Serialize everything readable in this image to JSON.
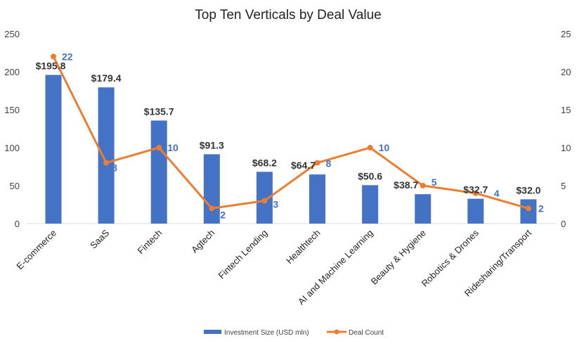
{
  "chart_data": {
    "type": "bar+line",
    "title": "Top Ten Verticals by Deal Value",
    "categories": [
      "E-commerce",
      "SaaS",
      "Fintech",
      "Agtech",
      "Fintech Lending",
      "Healthtech",
      "AI and Machine Learning",
      "Beauty & Hygiene",
      "Robotics & Drones",
      "Ridesharing/Transport"
    ],
    "series": [
      {
        "name": "Investment Size (USD mln)",
        "type": "bar",
        "axis": "left",
        "color": "#4472c4",
        "values": [
          195.8,
          179.4,
          135.7,
          91.3,
          68.2,
          64.7,
          50.6,
          38.7,
          32.7,
          32.0
        ],
        "labels": [
          "$195.8",
          "$179.4",
          "$135.7",
          "$91.3",
          "$68.2",
          "$64.7",
          "$50.6",
          "$38.7",
          "$32.7",
          "$32.0"
        ]
      },
      {
        "name": "Deal Count",
        "type": "line",
        "axis": "right",
        "color": "#ed7d31",
        "values": [
          22,
          8,
          10,
          2,
          3,
          8,
          10,
          5,
          4,
          2
        ],
        "labels": [
          "22",
          "8",
          "10",
          "2",
          "3",
          "8",
          "10",
          "5",
          "4",
          "2"
        ]
      }
    ],
    "left_axis": {
      "ylim": [
        0,
        250
      ],
      "ticks": [
        "0",
        "50",
        "100",
        "150",
        "200",
        "250"
      ]
    },
    "right_axis": {
      "ylim": [
        0,
        25
      ],
      "ticks": [
        "0",
        "5",
        "10",
        "15",
        "20",
        "25"
      ]
    },
    "legend": "bottom",
    "grid": false
  }
}
